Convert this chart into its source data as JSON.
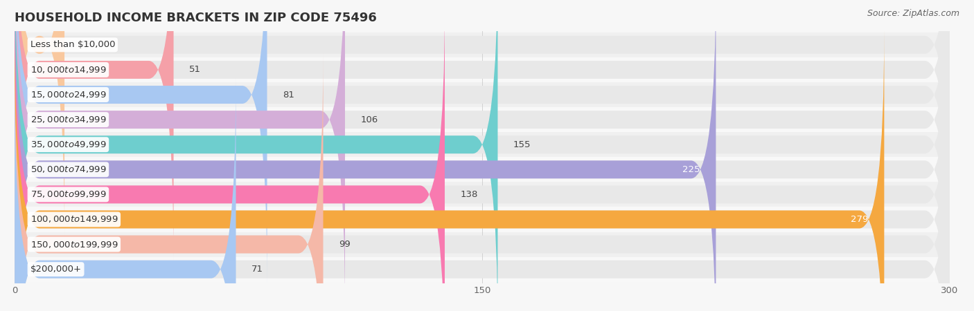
{
  "title": "HOUSEHOLD INCOME BRACKETS IN ZIP CODE 75496",
  "source_text": "Source: ZipAtlas.com",
  "categories": [
    "Less than $10,000",
    "$10,000 to $14,999",
    "$15,000 to $24,999",
    "$25,000 to $34,999",
    "$35,000 to $49,999",
    "$50,000 to $74,999",
    "$75,000 to $99,999",
    "$100,000 to $149,999",
    "$150,000 to $199,999",
    "$200,000+"
  ],
  "values": [
    16,
    51,
    81,
    106,
    155,
    225,
    138,
    279,
    99,
    71
  ],
  "bar_colors": [
    "#f9c89e",
    "#f5a0a8",
    "#a8c8f2",
    "#d4aed8",
    "#6ecece",
    "#a8a0d8",
    "#f87ab0",
    "#f5a840",
    "#f5b8a8",
    "#a8c8f2"
  ],
  "value_inside": [
    false,
    false,
    false,
    false,
    false,
    true,
    false,
    true,
    false,
    false
  ],
  "xlim": [
    0,
    300
  ],
  "xticks": [
    0,
    150,
    300
  ],
  "background_color": "#f7f7f7",
  "bar_bg_color": "#e8e8e8",
  "row_bg_colors": [
    "#f0f0f0",
    "#f8f8f8"
  ],
  "title_fontsize": 13,
  "label_fontsize": 9.5,
  "value_fontsize": 9.5,
  "source_fontsize": 9
}
